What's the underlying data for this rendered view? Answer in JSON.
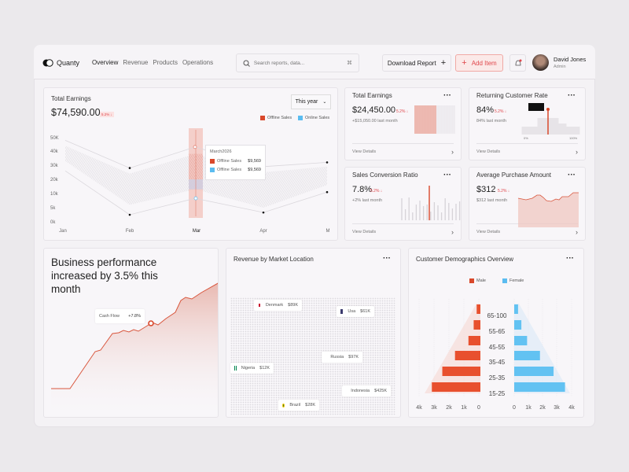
{
  "header": {
    "brand": "Quanty",
    "nav": [
      "Overview",
      "Revenue",
      "Products",
      "Operations"
    ],
    "search_placeholder": "Search reports, data...",
    "shortcut": "⌘",
    "download": "Download Report",
    "add": "Add Item",
    "user_name": "David Jones",
    "user_role": "Admin"
  },
  "earnings": {
    "title": "Total Earnings",
    "value": "$74,590.00",
    "badge": "5.2% ↓",
    "period": "This year",
    "legend": [
      "Offline Sales",
      "Online Sales"
    ],
    "tooltip": {
      "title": "March2026",
      "rows": [
        {
          "label": "Offline Sales",
          "value": "$9,569"
        },
        {
          "label": "Offline Sales",
          "value": "$9,569"
        }
      ]
    }
  },
  "chart_data": {
    "type": "area",
    "x": [
      "Jan",
      "Feb",
      "Mar",
      "Apr",
      "M"
    ],
    "y_ticks": [
      "50K",
      "40k",
      "30k",
      "20k",
      "10k",
      "5k",
      "0k"
    ],
    "y_tick_values": [
      50,
      40,
      30,
      20,
      10,
      5,
      0
    ],
    "series": [
      {
        "name": "Offline Sales",
        "upper": [
          48,
          28,
          43,
          29,
          32
        ]
      },
      {
        "name": "Online Sales",
        "lower": [
          26,
          2.5,
          8.3,
          3.3,
          11
        ]
      }
    ],
    "band_top": [
      44,
      24,
      38,
      25,
      29
    ],
    "band_bottom": [
      33,
      6,
      13,
      5,
      16
    ],
    "highlight": "Mar",
    "colors": {
      "offline": "#d9482b",
      "online": "#5bbcf0"
    }
  },
  "kpis": [
    {
      "title": "Total Earnings",
      "value": "$24,450.00",
      "change": "5.2% ↓",
      "sub": "+$15,050.00 last month",
      "link": "View Details"
    },
    {
      "title": "Returning Customer Rate",
      "value": "84%",
      "change": "5.2% ↓",
      "sub": "84% last month",
      "link": "View Details",
      "axis": [
        "0%",
        "100%"
      ]
    },
    {
      "title": "Sales Conversion Ratio",
      "value": "7.8%",
      "change": "5.2% ↓",
      "sub": "+2% last month",
      "link": "View Details"
    },
    {
      "title": "Average Purchase Amount",
      "value": "$312",
      "change": "5.2% ↓",
      "sub": "$312 last month",
      "link": "View Details"
    }
  ],
  "performance": {
    "headline": "Business performance increased by 3.5% this month",
    "tooltip_label": "Cash Flow",
    "tooltip_value": "+7.8%"
  },
  "market": {
    "title": "Revenue by Market Location",
    "locations": [
      {
        "name": "Denmark",
        "value": "$89K"
      },
      {
        "name": "Usa",
        "value": "$61K"
      },
      {
        "name": "Russia",
        "value": "$97K"
      },
      {
        "name": "Nigeria",
        "value": "$12K"
      },
      {
        "name": "Indonesia",
        "value": "$425K"
      },
      {
        "name": "Brazil",
        "value": "$28K"
      }
    ]
  },
  "demographics": {
    "title": "Customer Demographics Overview",
    "legend": [
      "Male",
      "Female"
    ],
    "groups": [
      "65-100",
      "55-65",
      "45-55",
      "35-45",
      "25-35",
      "15-25"
    ],
    "male": [
      0.25,
      0.45,
      0.8,
      1.7,
      2.55,
      3.25
    ],
    "female": [
      0.27,
      0.5,
      0.9,
      1.8,
      2.75,
      3.55
    ],
    "male_ticks": [
      "4k",
      "3k",
      "2k",
      "1k",
      "0"
    ],
    "female_ticks": [
      "0",
      "1k",
      "2k",
      "3k",
      "4k"
    ]
  }
}
